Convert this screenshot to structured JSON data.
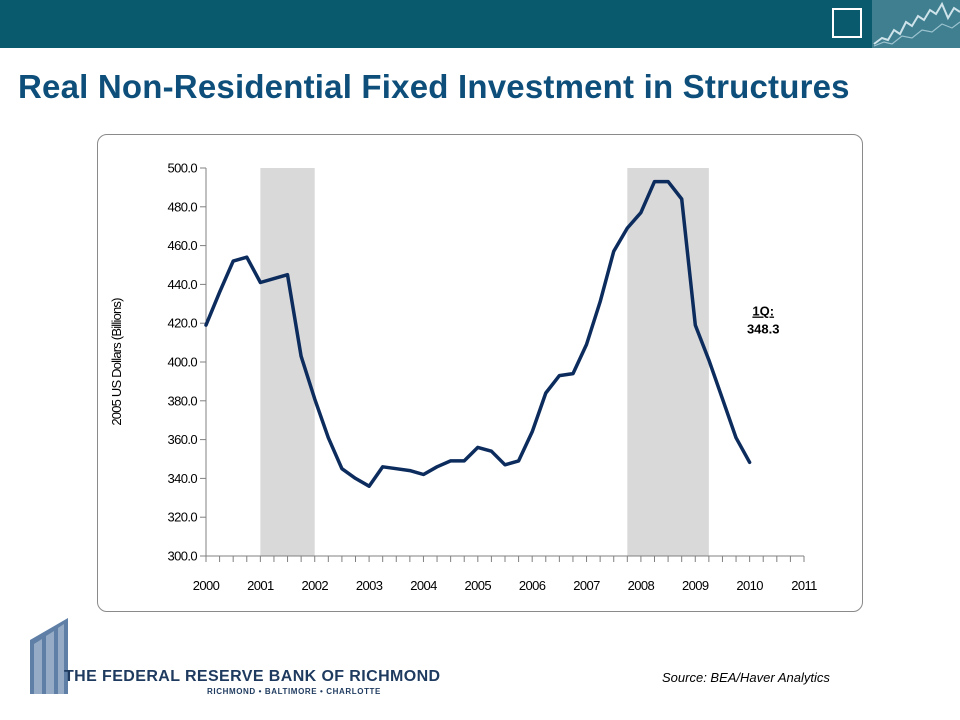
{
  "slide": {
    "title": "Real Non-Residential Fixed Investment in Structures",
    "source": "Source: BEA/Haver Analytics",
    "logo_name": "THE FEDERAL RESERVE BANK OF RICHMOND",
    "logo_cities": "RICHMOND • BALTIMORE • CHARLOTTE",
    "header_color": "#0a5a6e",
    "title_color": "#0d4f7a"
  },
  "chart_data": {
    "type": "line",
    "title": "",
    "xlabel": "",
    "ylabel": "2005 US Dollars (Billions)",
    "ylim": [
      300,
      500
    ],
    "yticks": [
      "300.0",
      "320.0",
      "340.0",
      "360.0",
      "380.0",
      "400.0",
      "420.0",
      "440.0",
      "460.0",
      "480.0",
      "500.0"
    ],
    "xticks": [
      "2000",
      "2001",
      "2002",
      "2003",
      "2004",
      "2005",
      "2006",
      "2007",
      "2008",
      "2009",
      "2010",
      "2011"
    ],
    "xlim": [
      2000,
      2011
    ],
    "grid": false,
    "legend": "none",
    "recessions": [
      {
        "start": 2001.0,
        "end": 2002.0
      },
      {
        "start": 2007.75,
        "end": 2009.25
      }
    ],
    "recession_color": "#d9d9d9",
    "line_color": "#0d2c5e",
    "series": [
      {
        "x": [
          2000.0,
          2000.25,
          2000.5,
          2000.75,
          2001.0,
          2001.25,
          2001.5,
          2001.75,
          2002.0,
          2002.25,
          2002.5,
          2002.75,
          2003.0,
          2003.25,
          2003.5,
          2003.75,
          2004.0,
          2004.25,
          2004.5,
          2004.75,
          2005.0,
          2005.25,
          2005.5,
          2005.75,
          2006.0,
          2006.25,
          2006.5,
          2006.75,
          2007.0,
          2007.25,
          2007.5,
          2007.75,
          2008.0,
          2008.25,
          2008.5,
          2008.75,
          2009.0,
          2009.25,
          2009.5,
          2009.75,
          2010.0
        ],
        "values": [
          419,
          436,
          452,
          454,
          441,
          443,
          445,
          403,
          381,
          361,
          345,
          340,
          336,
          346,
          345,
          344,
          342,
          346,
          349,
          349,
          356,
          354,
          347,
          349,
          364,
          384,
          393,
          394,
          409,
          431,
          457,
          469,
          477,
          493,
          493,
          484,
          419,
          401,
          381,
          361,
          348.3
        ]
      }
    ],
    "annotation": {
      "label": "1Q:",
      "value": "348.3",
      "x": 2010.25,
      "y": 426
    }
  }
}
